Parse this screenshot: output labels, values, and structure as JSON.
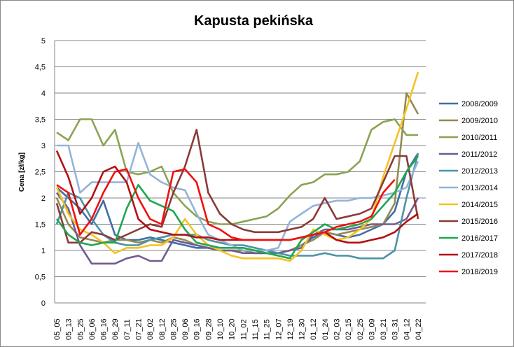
{
  "chart_data": {
    "type": "line",
    "title": "Kapusta pekińska",
    "xlabel": "",
    "ylabel": "Cena [zł/kg]",
    "ylim": [
      0,
      5
    ],
    "yticks": [
      0,
      0.5,
      1,
      1.5,
      2,
      2.5,
      3,
      3.5,
      4,
      4.5,
      5
    ],
    "ytick_labels": [
      "0",
      "0,5",
      "1",
      "1,5",
      "2",
      "2,5",
      "3",
      "3,5",
      "4",
      "4,5",
      "5"
    ],
    "grid": true,
    "legend_position": "right",
    "categories": [
      "05_05",
      "05_13",
      "05_25",
      "06_06",
      "06_16",
      "06_29",
      "07_11",
      "07_21",
      "08_02",
      "08_12",
      "08_25",
      "09_06",
      "09_16",
      "09_28",
      "10_10",
      "10_20",
      "11_02",
      "11_15",
      "11_25",
      "12_07",
      "12_19",
      "12_30",
      "01_12",
      "01_24",
      "02_03",
      "02_15",
      "02_25",
      "03_09",
      "03_21",
      "03_31",
      "04_12",
      "04_22"
    ],
    "series": [
      {
        "name": "2008/2009",
        "color": "#3F6FA3",
        "values": [
          2.2,
          2.0,
          1.8,
          1.5,
          1.95,
          1.3,
          1.2,
          1.2,
          1.25,
          1.2,
          1.15,
          1.1,
          1.05,
          1.05,
          1.0,
          1.0,
          1.0,
          0.95,
          0.95,
          0.95,
          1.0,
          1.1,
          1.25,
          1.35,
          1.3,
          1.25,
          1.3,
          1.4,
          1.5,
          1.75,
          2.5,
          2.85
        ]
      },
      {
        "name": "2009/2010",
        "color": "#948A54",
        "values": [
          2.0,
          1.5,
          1.25,
          1.2,
          1.15,
          1.2,
          1.2,
          1.15,
          1.2,
          1.15,
          1.25,
          1.2,
          1.1,
          1.05,
          1.0,
          1.0,
          1.0,
          0.95,
          0.95,
          0.95,
          1.0,
          1.1,
          1.2,
          1.35,
          1.3,
          1.35,
          1.4,
          1.45,
          1.5,
          1.9,
          4.0,
          3.6
        ]
      },
      {
        "name": "2010/2011",
        "color": "#8AA352",
        "values": [
          3.25,
          3.1,
          3.5,
          3.5,
          3.0,
          3.3,
          2.5,
          2.45,
          2.5,
          2.6,
          2.1,
          1.85,
          1.65,
          1.55,
          1.5,
          1.5,
          1.55,
          1.6,
          1.65,
          1.8,
          2.05,
          2.25,
          2.3,
          2.45,
          2.45,
          2.5,
          2.7,
          3.3,
          3.45,
          3.5,
          3.2,
          3.2
        ]
      },
      {
        "name": "2011/2012",
        "color": "#715B91",
        "values": [
          2.1,
          1.8,
          1.1,
          0.75,
          0.75,
          0.75,
          0.85,
          0.9,
          0.8,
          0.8,
          1.2,
          1.15,
          1.1,
          1.05,
          1.0,
          1.0,
          0.95,
          0.95,
          0.95,
          0.95,
          1.0,
          1.05,
          1.3,
          1.4,
          1.4,
          1.4,
          1.45,
          1.5,
          1.5,
          1.5,
          1.6,
          2.0
        ]
      },
      {
        "name": "2012/2013",
        "color": "#4A93A8",
        "values": [
          1.5,
          2.1,
          2.0,
          1.6,
          1.3,
          1.15,
          1.1,
          1.1,
          1.2,
          1.25,
          1.3,
          1.3,
          1.3,
          1.2,
          1.15,
          1.1,
          1.1,
          1.05,
          1.0,
          0.95,
          0.9,
          0.9,
          0.9,
          0.95,
          0.9,
          0.9,
          0.85,
          0.85,
          0.85,
          1.0,
          2.0,
          2.85
        ]
      },
      {
        "name": "2013/2014",
        "color": "#93B4DA",
        "values": [
          3.0,
          3.0,
          2.1,
          2.3,
          2.3,
          2.3,
          2.3,
          3.05,
          2.45,
          2.3,
          2.2,
          2.15,
          1.7,
          1.3,
          1.2,
          1.1,
          1.0,
          1.0,
          1.0,
          1.05,
          1.55,
          1.7,
          1.85,
          1.9,
          1.95,
          1.95,
          2.0,
          2.0,
          2.05,
          2.1,
          2.2,
          2.7
        ]
      },
      {
        "name": "2014/2015",
        "color": "#F5C222",
        "values": [
          2.2,
          1.7,
          1.4,
          1.3,
          1.15,
          0.95,
          1.05,
          1.05,
          1.1,
          1.1,
          1.25,
          1.6,
          1.3,
          1.1,
          1.0,
          0.9,
          0.85,
          0.85,
          0.85,
          0.85,
          0.8,
          1.0,
          1.4,
          1.3,
          1.2,
          1.25,
          1.4,
          1.6,
          2.4,
          3.05,
          3.7,
          4.4
        ]
      },
      {
        "name": "2015/2016",
        "color": "#8B3A38",
        "values": [
          1.9,
          1.15,
          1.15,
          1.35,
          1.3,
          1.2,
          1.3,
          1.4,
          1.5,
          1.45,
          2.1,
          2.6,
          3.3,
          2.1,
          1.7,
          1.5,
          1.4,
          1.35,
          1.35,
          1.35,
          1.4,
          1.45,
          1.6,
          2.0,
          1.6,
          1.65,
          1.7,
          1.8,
          2.3,
          2.8,
          2.8,
          1.6
        ]
      },
      {
        "name": "2016/2017",
        "color": "#1EA84E",
        "values": [
          1.6,
          1.3,
          1.15,
          1.1,
          1.15,
          1.15,
          1.8,
          2.25,
          1.95,
          1.85,
          1.75,
          1.4,
          1.15,
          1.1,
          1.05,
          1.05,
          1.05,
          1.0,
          0.95,
          0.9,
          0.85,
          1.2,
          1.35,
          1.5,
          1.4,
          1.45,
          1.5,
          1.6,
          1.85,
          2.1,
          2.5,
          2.8
        ]
      },
      {
        "name": "2017/2018",
        "color": "#B31012",
        "values": [
          2.9,
          2.4,
          1.7,
          2.0,
          2.5,
          2.6,
          2.3,
          1.6,
          1.4,
          1.35,
          1.3,
          1.3,
          1.25,
          1.25,
          1.2,
          1.2,
          1.2,
          1.2,
          1.2,
          1.2,
          1.2,
          1.25,
          1.3,
          1.35,
          1.2,
          1.15,
          1.15,
          1.2,
          1.25,
          1.35,
          1.55,
          1.7
        ]
      },
      {
        "name": "2018/2019",
        "color": "#F01010",
        "values": [
          2.25,
          2.1,
          1.3,
          1.6,
          2.1,
          2.5,
          2.55,
          2.0,
          1.6,
          1.5,
          2.5,
          2.55,
          2.3,
          1.5,
          1.4,
          1.25,
          1.2,
          1.2,
          1.2,
          1.2,
          1.2,
          1.25,
          1.3,
          1.35,
          1.45,
          1.5,
          1.55,
          1.65,
          2.1,
          2.35,
          null,
          null
        ]
      }
    ]
  }
}
